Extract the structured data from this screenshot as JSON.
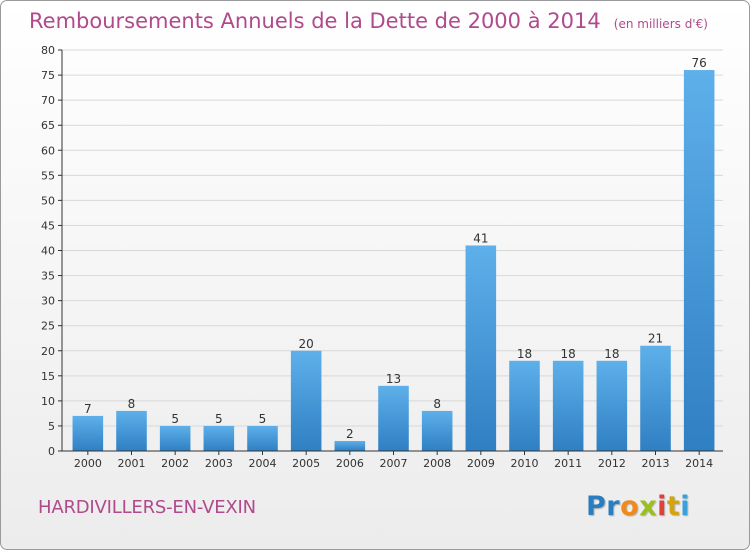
{
  "chart_data": {
    "type": "bar",
    "title": "Remboursements Annuels de la Dette de 2000 à 2014",
    "subtitle": "(en milliers d'€)",
    "categories": [
      "2000",
      "2001",
      "2002",
      "2003",
      "2004",
      "2005",
      "2006",
      "2007",
      "2008",
      "2009",
      "2010",
      "2011",
      "2012",
      "2013",
      "2014"
    ],
    "values": [
      7,
      8,
      5,
      5,
      5,
      20,
      2,
      13,
      8,
      41,
      18,
      18,
      18,
      21,
      76
    ],
    "ylim": [
      0,
      80
    ],
    "yticks": [
      0,
      5,
      10,
      15,
      20,
      25,
      30,
      35,
      40,
      45,
      50,
      55,
      60,
      65,
      70,
      75,
      80
    ],
    "grid": true,
    "bar_color": "#4f9fdc"
  },
  "commune": "HARDIVILLERS-EN-VEXIN",
  "logo": {
    "letters": [
      "P",
      "r",
      "o",
      "x",
      "i",
      "t",
      "i"
    ],
    "colors": [
      "#2a7ec0",
      "#2a7ec0",
      "#f08a1c",
      "#9bbf1d",
      "#e0403a",
      "#d4a40e",
      "#3aa0d8"
    ]
  },
  "colors": {
    "title": "#b04a8c",
    "grid": "#d8d8d8",
    "axis": "#333333"
  }
}
